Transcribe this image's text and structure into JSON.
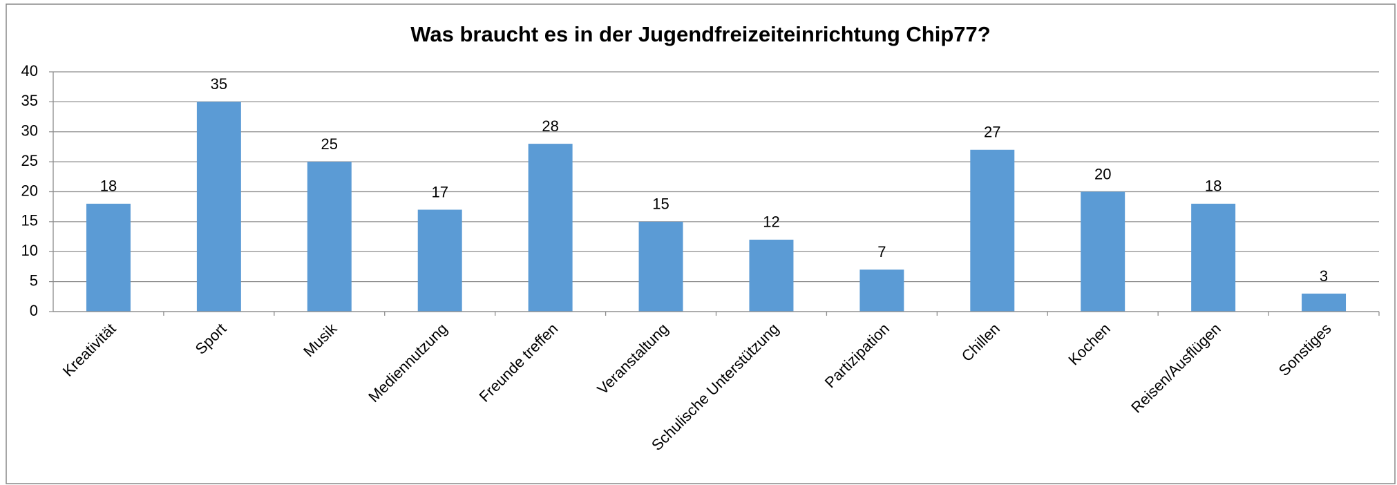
{
  "chart_data": {
    "type": "bar",
    "title": "Was braucht es in der Jugendfreizeiteinrichtung Chip77?",
    "categories": [
      "Kreativität",
      "Sport",
      "Musik",
      "Mediennutzung",
      "Freunde treffen",
      "Veranstaltung",
      "Schulische Unterstützung",
      "Partizipation",
      "Chillen",
      "Kochen",
      "Reisen/Ausflügen",
      "Sonstiges"
    ],
    "values": [
      18,
      35,
      25,
      17,
      28,
      15,
      12,
      7,
      27,
      20,
      18,
      3
    ],
    "color": "#5b9bd5",
    "ylim": [
      0,
      40
    ],
    "yticks": [
      0,
      5,
      10,
      15,
      20,
      25,
      30,
      35,
      40
    ],
    "grid": true
  }
}
